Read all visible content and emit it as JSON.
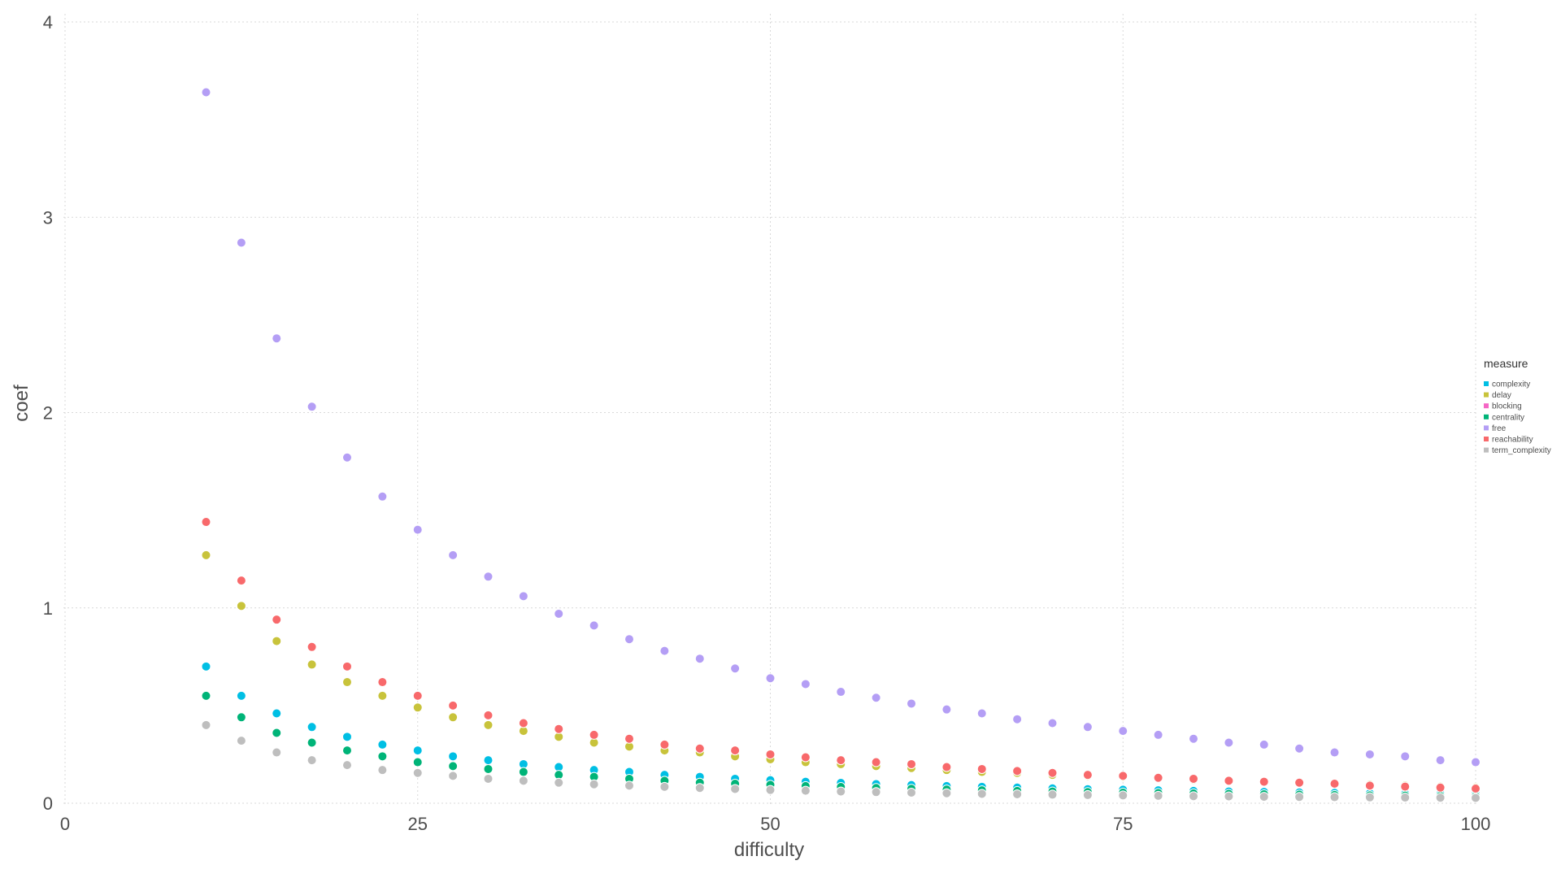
{
  "chart_data": {
    "type": "scatter",
    "xlabel": "difficulty",
    "ylabel": "coef",
    "xlim": [
      0,
      100
    ],
    "ylim": [
      0,
      4
    ],
    "x_ticks": [
      "0",
      "25",
      "50",
      "75",
      "100"
    ],
    "y_ticks": [
      "0",
      "1",
      "2",
      "3",
      "4"
    ],
    "grid": true,
    "legend": {
      "title": "measure",
      "position": "right"
    },
    "x": [
      10,
      12.5,
      15,
      17.5,
      20,
      22.5,
      25,
      27.5,
      30,
      32.5,
      35,
      37.5,
      40,
      42.5,
      45,
      47.5,
      50,
      52.5,
      55,
      57.5,
      60,
      62.5,
      65,
      67.5,
      70,
      72.5,
      75,
      77.5,
      80,
      82.5,
      85,
      87.5,
      90,
      92.5,
      95,
      97.5,
      100
    ],
    "series": [
      {
        "name": "complexity",
        "color": "#00BFE4",
        "values": [
          0.7,
          0.55,
          0.46,
          0.39,
          0.34,
          0.3,
          0.27,
          0.24,
          0.22,
          0.2,
          0.185,
          0.17,
          0.16,
          0.145,
          0.135,
          0.125,
          0.118,
          0.11,
          0.104,
          0.098,
          0.093,
          0.088,
          0.084,
          0.08,
          0.076,
          0.072,
          0.069,
          0.066,
          0.063,
          0.06,
          0.058,
          0.055,
          0.053,
          0.051,
          0.049,
          0.047,
          0.046
        ]
      },
      {
        "name": "delay",
        "color": "#C8C33B",
        "values": [
          1.27,
          1.01,
          0.83,
          0.71,
          0.62,
          0.55,
          0.49,
          0.44,
          0.4,
          0.37,
          0.34,
          0.31,
          0.29,
          0.27,
          0.26,
          0.24,
          0.225,
          0.21,
          0.2,
          0.19,
          0.18,
          0.17,
          0.16,
          0.155,
          0.145,
          0.14,
          0.135,
          0.13,
          0.12,
          0.115,
          0.11,
          0.105,
          0.1,
          0.095,
          0.09,
          0.085,
          0.08
        ]
      },
      {
        "name": "blocking",
        "color": "#F566C5",
        "values": []
      },
      {
        "name": "centrality",
        "color": "#00B478",
        "values": [
          0.55,
          0.44,
          0.36,
          0.31,
          0.27,
          0.24,
          0.21,
          0.19,
          0.175,
          0.16,
          0.145,
          0.135,
          0.125,
          0.115,
          0.105,
          0.1,
          0.094,
          0.088,
          0.083,
          0.078,
          0.074,
          0.07,
          0.066,
          0.063,
          0.06,
          0.057,
          0.054,
          0.052,
          0.05,
          0.048,
          0.046,
          0.044,
          0.042,
          0.04,
          0.039,
          0.037,
          0.036
        ]
      },
      {
        "name": "free",
        "color": "#B49EF5",
        "values": [
          3.64,
          2.87,
          2.38,
          2.03,
          1.77,
          1.57,
          1.4,
          1.27,
          1.16,
          1.06,
          0.97,
          0.91,
          0.84,
          0.78,
          0.74,
          0.69,
          0.64,
          0.61,
          0.57,
          0.54,
          0.51,
          0.48,
          0.46,
          0.43,
          0.41,
          0.39,
          0.37,
          0.35,
          0.33,
          0.31,
          0.3,
          0.28,
          0.26,
          0.25,
          0.24,
          0.22,
          0.21
        ]
      },
      {
        "name": "reachability",
        "color": "#F8696B",
        "values": [
          1.44,
          1.14,
          0.94,
          0.8,
          0.7,
          0.62,
          0.55,
          0.5,
          0.45,
          0.41,
          0.38,
          0.35,
          0.33,
          0.3,
          0.28,
          0.27,
          0.25,
          0.235,
          0.22,
          0.21,
          0.2,
          0.185,
          0.175,
          0.165,
          0.155,
          0.145,
          0.14,
          0.13,
          0.125,
          0.115,
          0.11,
          0.105,
          0.1,
          0.09,
          0.085,
          0.08,
          0.075
        ]
      },
      {
        "name": "term_complexity",
        "color": "#BEBEBE",
        "values": [
          0.4,
          0.32,
          0.26,
          0.22,
          0.195,
          0.17,
          0.155,
          0.14,
          0.125,
          0.115,
          0.105,
          0.097,
          0.09,
          0.084,
          0.078,
          0.073,
          0.068,
          0.064,
          0.06,
          0.057,
          0.054,
          0.051,
          0.048,
          0.046,
          0.044,
          0.042,
          0.04,
          0.038,
          0.036,
          0.035,
          0.033,
          0.032,
          0.031,
          0.03,
          0.029,
          0.028,
          0.027
        ]
      }
    ]
  }
}
